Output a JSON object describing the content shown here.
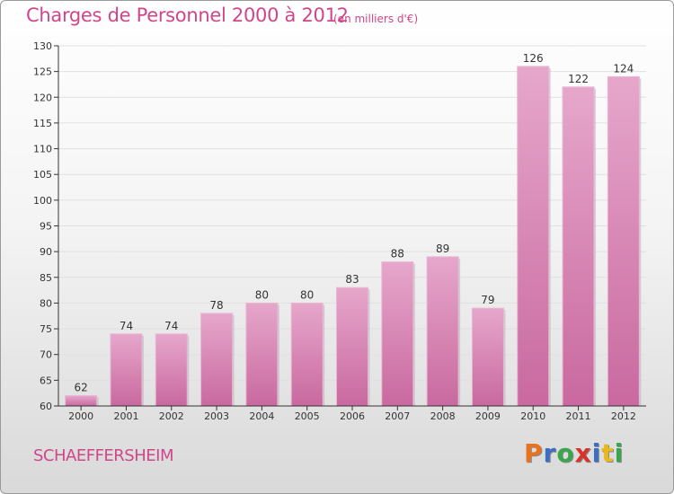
{
  "header": {
    "title": "Charges de Personnel 2000 à 2012",
    "subtitle": "(en milliers d'€)"
  },
  "footer": {
    "commune": "SCHAEFFERSHEIM",
    "logo_text": "Proxiti",
    "logo_colors": [
      "#e8731c",
      "#3a6fc4",
      "#3aa64b",
      "#d8332a",
      "#3a6fc4",
      "#e8b81c",
      "#3aa64b"
    ]
  },
  "colors": {
    "bar": "#c9699f",
    "bar_light": "#e6a7cb",
    "axis": "#333333",
    "grid": "#e0e0e0",
    "title": "#d0468a"
  },
  "chart_data": {
    "type": "bar",
    "categories": [
      "2000",
      "2001",
      "2002",
      "2003",
      "2004",
      "2005",
      "2006",
      "2007",
      "2008",
      "2009",
      "2010",
      "2011",
      "2012"
    ],
    "values": [
      62,
      74,
      74,
      78,
      80,
      80,
      83,
      88,
      89,
      79,
      126,
      122,
      124
    ],
    "ylim": [
      60,
      130
    ],
    "yticks": [
      60,
      65,
      70,
      75,
      80,
      85,
      90,
      95,
      100,
      105,
      110,
      115,
      120,
      125,
      130
    ],
    "grid": true,
    "data_labels": true
  }
}
